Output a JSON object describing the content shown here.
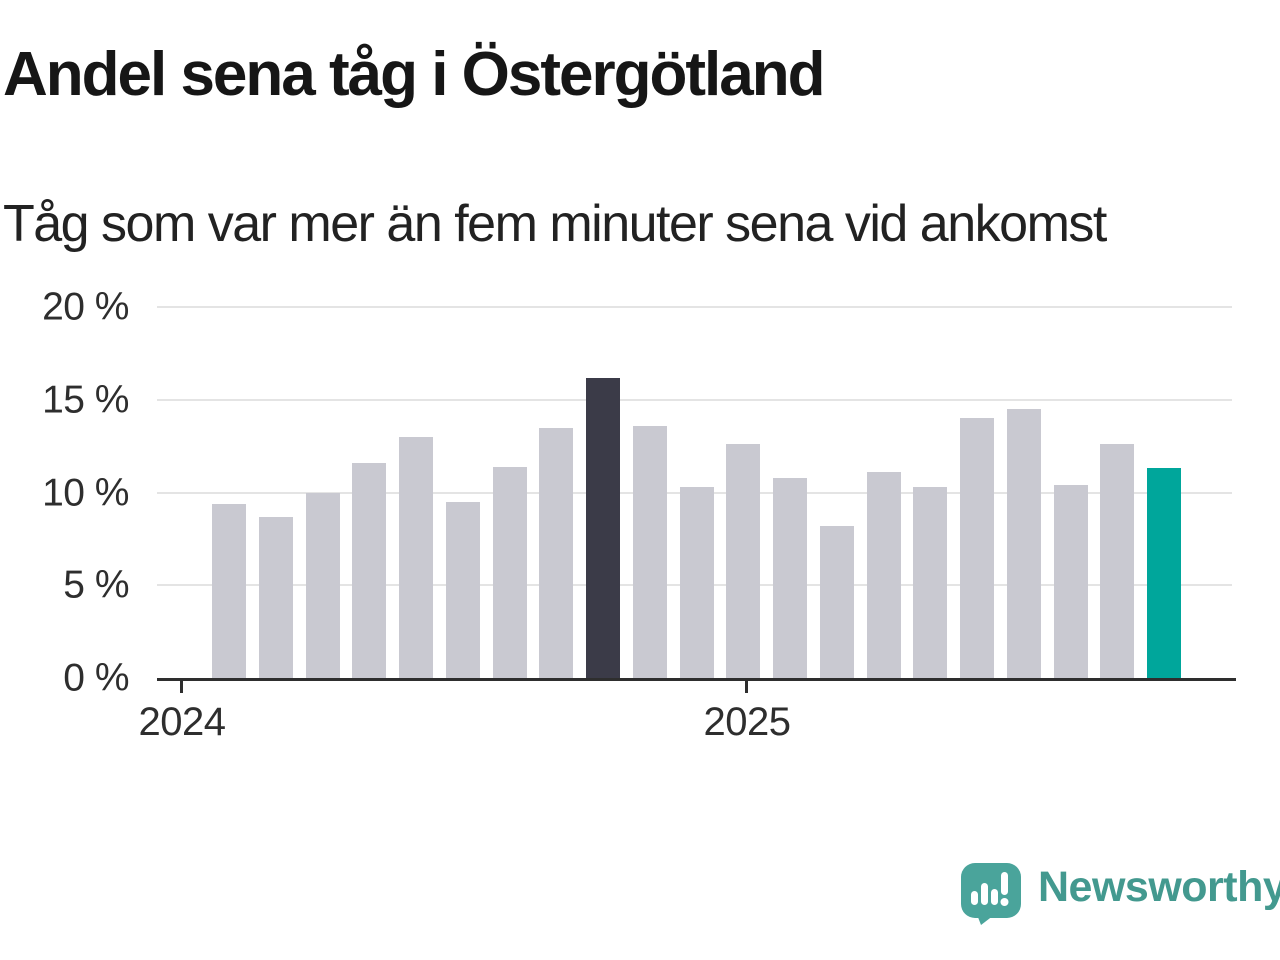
{
  "header": {
    "title": "Andel sena tåg i Östergötland",
    "subtitle": "Tåg som var mer än fem minuter sena vid ankomst"
  },
  "chart_data": {
    "type": "bar",
    "title": "Andel sena tåg i Östergötland",
    "subtitle": "Tåg som var mer än fem minuter sena vid ankomst",
    "xlabel": "",
    "ylabel": "",
    "unit": "%",
    "x": [
      "2024-02",
      "2024-03",
      "2024-04",
      "2024-05",
      "2024-06",
      "2024-07",
      "2024-08",
      "2024-09",
      "2024-10",
      "2024-11",
      "2024-12",
      "2025-01",
      "2025-02",
      "2025-03",
      "2025-04",
      "2025-05",
      "2025-06",
      "2025-07",
      "2025-08",
      "2025-09",
      "2025-10"
    ],
    "values": [
      9.4,
      8.7,
      10.0,
      11.6,
      13.0,
      9.5,
      11.4,
      13.5,
      16.2,
      13.6,
      10.3,
      12.6,
      10.8,
      8.2,
      11.1,
      10.3,
      14.0,
      14.5,
      10.4,
      12.6,
      11.3
    ],
    "ylim": [
      0,
      20
    ],
    "yticks": [
      {
        "value": 0,
        "label": "0 %"
      },
      {
        "value": 5,
        "label": "5 %"
      },
      {
        "value": 10,
        "label": "10 %"
      },
      {
        "value": 15,
        "label": "15 %"
      },
      {
        "value": 20,
        "label": "20 %"
      }
    ],
    "xticks": [
      {
        "label": "2024"
      },
      {
        "label": "2025"
      }
    ],
    "grid": true,
    "legend": false,
    "highlights": {
      "dark_index": 8,
      "accent_index": 20
    }
  },
  "colors": {
    "bar_default": "#c9c9d1",
    "bar_dark": "#3b3b48",
    "bar_accent": "#00a69b",
    "gridline": "#e4e4e4",
    "axis": "#2e2e2e",
    "brand_teal": "#43998f",
    "background": "#ffffff"
  },
  "footer": {
    "brand": "Newsworthy"
  }
}
